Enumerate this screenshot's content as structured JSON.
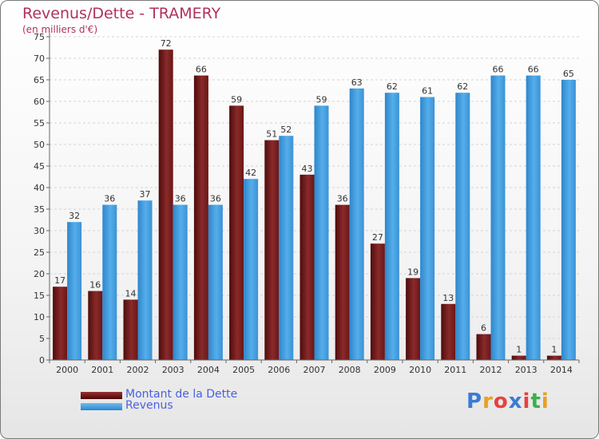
{
  "title": "Revenus/Dette - TRAMERY",
  "subtitle": "(en milliers d'€)",
  "legend": {
    "debt_label": "Montant de la Dette",
    "revenue_label": "Revenus"
  },
  "logo": {
    "text": "Proxiti",
    "letter_colors": [
      "#3a7bd5",
      "#e8a020",
      "#e84040",
      "#3a7bd5",
      "#e84040",
      "#3ab04a",
      "#e8a020"
    ]
  },
  "colors": {
    "debt": "#6e1818",
    "revenue": "#3c94d8",
    "title": "#b0325a",
    "legend_text": "#4a5fe0"
  },
  "chart_data": {
    "type": "bar",
    "categories": [
      "2000",
      "2001",
      "2002",
      "2003",
      "2004",
      "2005",
      "2006",
      "2007",
      "2008",
      "2009",
      "2010",
      "2011",
      "2012",
      "2013",
      "2014"
    ],
    "series": [
      {
        "name": "Montant de la Dette",
        "values": [
          17,
          16,
          14,
          72,
          66,
          59,
          51,
          43,
          36,
          27,
          19,
          13,
          6,
          1,
          1
        ]
      },
      {
        "name": "Revenus",
        "values": [
          32,
          36,
          37,
          36,
          36,
          42,
          52,
          59,
          63,
          62,
          61,
          62,
          66,
          66,
          65
        ]
      }
    ],
    "yticks": [
      0,
      5,
      10,
      15,
      20,
      25,
      30,
      35,
      40,
      45,
      50,
      55,
      60,
      65,
      70,
      75
    ],
    "ylim": [
      0,
      75
    ],
    "grid": true,
    "legend_position": "bottom-left"
  }
}
